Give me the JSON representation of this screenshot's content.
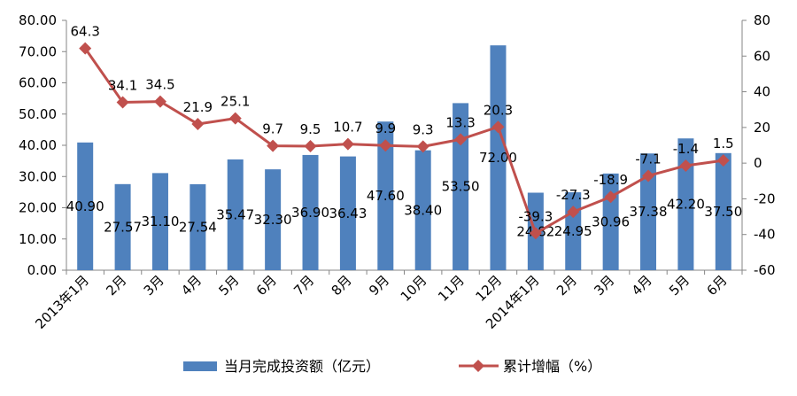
{
  "chart_data": {
    "type": "bar+line",
    "categories": [
      "2013年1月",
      "2月",
      "3月",
      "4月",
      "5月",
      "6月",
      "7月",
      "8月",
      "9月",
      "10月",
      "11月",
      "12月",
      "2014年1月",
      "2月",
      "3月",
      "4月",
      "5月",
      "6月"
    ],
    "series": [
      {
        "name": "当月完成投资额（亿元）",
        "type": "bar",
        "axis": "left",
        "color": "#4F81BD",
        "values": [
          40.9,
          27.57,
          31.1,
          27.54,
          35.47,
          32.3,
          36.9,
          36.43,
          47.6,
          38.4,
          53.5,
          72.0,
          24.82,
          24.95,
          30.96,
          37.38,
          42.2,
          37.5
        ],
        "labels": [
          "40.90",
          "27.57",
          "31.10",
          "27.54",
          "35.47",
          "32.30",
          "36.90",
          "36.43",
          "47.60",
          "38.40",
          "53.50",
          "72.00",
          "24.82",
          "24.95",
          "30.96",
          "37.38",
          "42.20",
          "37.50"
        ]
      },
      {
        "name": "累计增幅（%）",
        "type": "line",
        "axis": "right",
        "color": "#C0504D",
        "values": [
          64.3,
          34.1,
          34.5,
          21.9,
          25.1,
          9.7,
          9.5,
          10.7,
          9.9,
          9.3,
          13.3,
          20.3,
          -39.3,
          -27.3,
          -18.9,
          -7.1,
          -1.4,
          1.5
        ],
        "labels": [
          "64.3",
          "34.1",
          "34.5",
          "21.9",
          "25.1",
          "9.7",
          "9.5",
          "10.7",
          "9.9",
          "9.3",
          "13.3",
          "20.3",
          "-39.3",
          "-27.3",
          "-18.9",
          "-7.1",
          "-1.4",
          "1.5"
        ]
      }
    ],
    "y_left": {
      "range": [
        0,
        80
      ],
      "ticks": [
        "0.00",
        "10.00",
        "20.00",
        "30.00",
        "40.00",
        "50.00",
        "60.00",
        "70.00",
        "80.00"
      ]
    },
    "y_right": {
      "range": [
        -60,
        80
      ],
      "ticks": [
        "-60",
        "-40",
        "-20",
        "0",
        "20",
        "40",
        "60",
        "80"
      ]
    },
    "grid": false,
    "legend": "bottom"
  }
}
